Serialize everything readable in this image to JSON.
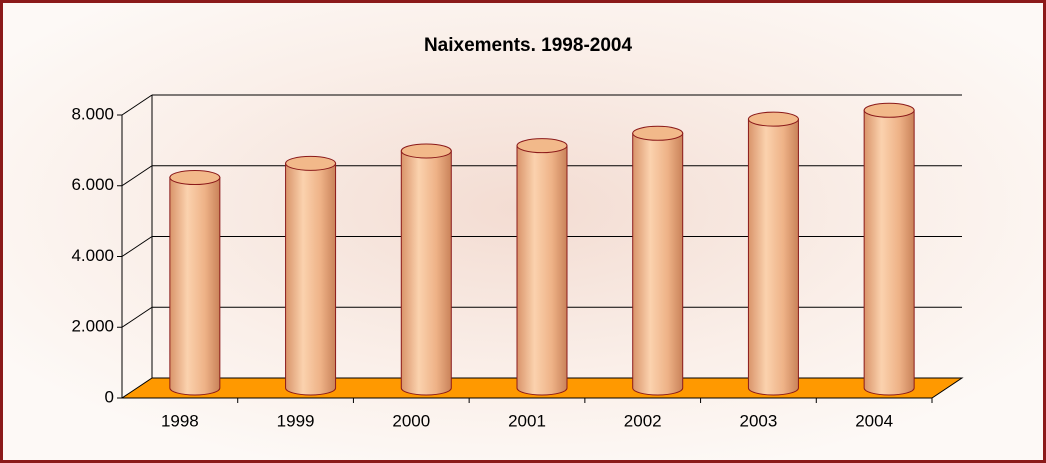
{
  "chart_data": {
    "type": "bar",
    "title": "Naixements. 1998-2004",
    "categories": [
      "1998",
      "1999",
      "2000",
      "2001",
      "2002",
      "2003",
      "2004"
    ],
    "values": [
      5950,
      6350,
      6700,
      6850,
      7200,
      7600,
      7850
    ],
    "color": "#f2b98a",
    "floor_color": "#ff9900",
    "ylim": [
      0,
      8000
    ],
    "yticks": [
      0,
      {
        "value": 2000,
        "label": "2.000"
      },
      {
        "value": 4000,
        "label": "4.000"
      },
      {
        "value": 6000,
        "label": "6.000"
      },
      {
        "value": 8000,
        "label": "8.000"
      }
    ],
    "grid": true
  }
}
